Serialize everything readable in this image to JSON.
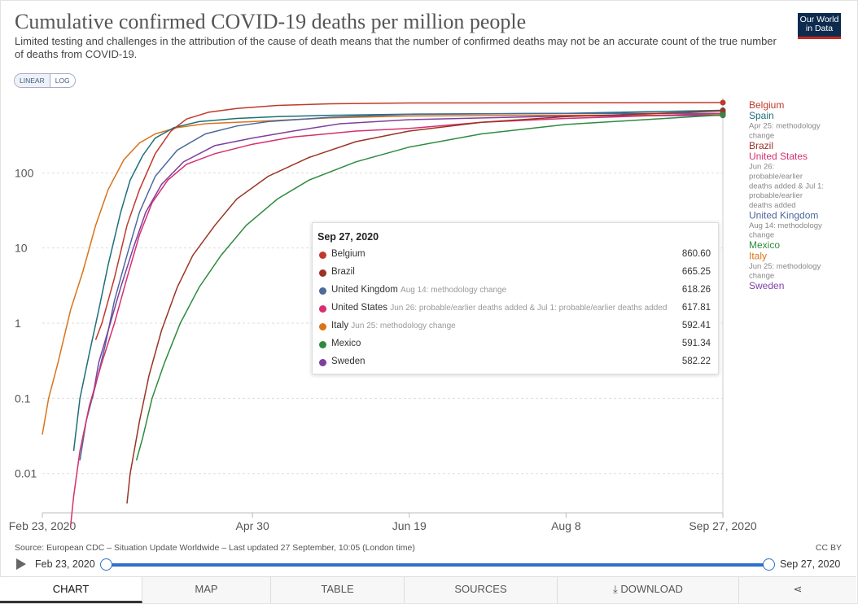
{
  "header": {
    "title": "Cumulative confirmed COVID-19 deaths per million people",
    "subtitle": "Limited testing and challenges in the attribution of the cause of death means that the number of confirmed deaths may not be an accurate count of the true number of deaths from COVID-19.",
    "logo_line1": "Our World",
    "logo_line2": "in Data"
  },
  "controls": {
    "linear_label": "LINEAR",
    "log_label": "LOG"
  },
  "tooltip": {
    "date": "Sep 27, 2020",
    "rows": [
      {
        "name": "Belgium",
        "note": "",
        "value": "860.60",
        "color": "#c0392b"
      },
      {
        "name": "Brazil",
        "note": "",
        "value": "665.25",
        "color": "#9a3324"
      },
      {
        "name": "United Kingdom",
        "note": "Aug 14: methodology change",
        "value": "618.26",
        "color": "#4c6a9c"
      },
      {
        "name": "United States",
        "note": "Jun 26: probable/earlier deaths added & Jul 1: probable/earlier deaths added",
        "value": "617.81",
        "color": "#d62f6f"
      },
      {
        "name": "Italy",
        "note": "Jun 25: methodology change",
        "value": "592.41",
        "color": "#d9741b"
      },
      {
        "name": "Mexico",
        "note": "",
        "value": "591.34",
        "color": "#2e8b3e"
      },
      {
        "name": "Sweden",
        "note": "",
        "value": "582.22",
        "color": "#7e3fa0"
      }
    ]
  },
  "legend": [
    {
      "name": "Belgium",
      "color": "#c0392b",
      "note": ""
    },
    {
      "name": "Spain",
      "color": "#1e6f7b",
      "note": "Apr 25: methodology change"
    },
    {
      "name": "Brazil",
      "color": "#9a3324",
      "note": ""
    },
    {
      "name": "United States",
      "color": "#d62f6f",
      "note": "Jun 26: probable/earlier deaths added & Jul 1: probable/earlier deaths added"
    },
    {
      "name": "United Kingdom",
      "color": "#4c6a9c",
      "note": "Aug 14: methodology change"
    },
    {
      "name": "Mexico",
      "color": "#2e8b3e",
      "note": ""
    },
    {
      "name": "Italy",
      "color": "#d9741b",
      "note": "Jun 25: methodology change"
    },
    {
      "name": "Sweden",
      "color": "#7e3fa0",
      "note": ""
    }
  ],
  "chart_data": {
    "type": "line",
    "title": "Cumulative confirmed COVID-19 deaths per million people",
    "yscale": "log",
    "ylim": [
      0.003,
      1000
    ],
    "xlim": [
      0,
      217
    ],
    "x_ticks": [
      {
        "day": 0,
        "label": "Feb 23, 2020"
      },
      {
        "day": 67,
        "label": "Apr 30"
      },
      {
        "day": 117,
        "label": "Jun 19"
      },
      {
        "day": 167,
        "label": "Aug 8"
      },
      {
        "day": 217,
        "label": "Sep 27, 2020"
      }
    ],
    "y_ticks": [
      {
        "value": 0.01,
        "label": "0.01"
      },
      {
        "value": 0.1,
        "label": "0.1"
      },
      {
        "value": 1,
        "label": "1"
      },
      {
        "value": 10,
        "label": "10"
      },
      {
        "value": 100,
        "label": "100"
      }
    ],
    "series": [
      {
        "name": "Italy",
        "color": "#d9741b",
        "points": [
          [
            0,
            0.033
          ],
          [
            2,
            0.1
          ],
          [
            5,
            0.3
          ],
          [
            9,
            1.5
          ],
          [
            13,
            5
          ],
          [
            17,
            20
          ],
          [
            21,
            60
          ],
          [
            26,
            150
          ],
          [
            31,
            250
          ],
          [
            36,
            330
          ],
          [
            43,
            400
          ],
          [
            52,
            450
          ],
          [
            67,
            480
          ],
          [
            92,
            540
          ],
          [
            117,
            570
          ],
          [
            167,
            585
          ],
          [
            217,
            592.41
          ]
        ]
      },
      {
        "name": "Spain",
        "color": "#1e6f7b",
        "points": [
          [
            10,
            0.02
          ],
          [
            12,
            0.1
          ],
          [
            15,
            0.4
          ],
          [
            18,
            1.5
          ],
          [
            21,
            6
          ],
          [
            25,
            30
          ],
          [
            28,
            80
          ],
          [
            32,
            170
          ],
          [
            36,
            290
          ],
          [
            42,
            400
          ],
          [
            50,
            480
          ],
          [
            62,
            530
          ],
          [
            75,
            560
          ],
          [
            90,
            580
          ],
          [
            117,
            605
          ],
          [
            167,
            620
          ],
          [
            217,
            680
          ]
        ]
      },
      {
        "name": "Belgium",
        "color": "#c0392b",
        "points": [
          [
            17,
            0.6
          ],
          [
            19,
            1
          ],
          [
            23,
            4
          ],
          [
            27,
            20
          ],
          [
            31,
            60
          ],
          [
            36,
            180
          ],
          [
            41,
            360
          ],
          [
            46,
            520
          ],
          [
            53,
            640
          ],
          [
            62,
            720
          ],
          [
            75,
            790
          ],
          [
            92,
            830
          ],
          [
            117,
            850
          ],
          [
            167,
            855
          ],
          [
            217,
            860.6
          ]
        ]
      },
      {
        "name": "United Kingdom",
        "color": "#4c6a9c",
        "points": [
          [
            12,
            0.015
          ],
          [
            14,
            0.05
          ],
          [
            17,
            0.15
          ],
          [
            20,
            0.5
          ],
          [
            23,
            2
          ],
          [
            27,
            8
          ],
          [
            31,
            30
          ],
          [
            36,
            90
          ],
          [
            43,
            200
          ],
          [
            52,
            330
          ],
          [
            62,
            420
          ],
          [
            72,
            480
          ],
          [
            92,
            550
          ],
          [
            117,
            600
          ],
          [
            167,
            620
          ],
          [
            217,
            618.26
          ]
        ]
      },
      {
        "name": "Sweden",
        "color": "#7e3fa0",
        "points": [
          [
            16,
            0.1
          ],
          [
            18,
            0.3
          ],
          [
            21,
            0.8
          ],
          [
            25,
            3
          ],
          [
            29,
            10
          ],
          [
            33,
            30
          ],
          [
            38,
            70
          ],
          [
            45,
            140
          ],
          [
            55,
            230
          ],
          [
            67,
            290
          ],
          [
            80,
            360
          ],
          [
            95,
            450
          ],
          [
            117,
            510
          ],
          [
            167,
            570
          ],
          [
            217,
            582.22
          ]
        ]
      },
      {
        "name": "United States",
        "color": "#d62f6f",
        "points": [
          [
            9,
            0.002
          ],
          [
            10,
            0.005
          ],
          [
            12,
            0.02
          ],
          [
            15,
            0.08
          ],
          [
            19,
            0.3
          ],
          [
            23,
            1
          ],
          [
            27,
            4
          ],
          [
            31,
            15
          ],
          [
            35,
            40
          ],
          [
            40,
            80
          ],
          [
            46,
            130
          ],
          [
            55,
            180
          ],
          [
            67,
            240
          ],
          [
            80,
            300
          ],
          [
            100,
            360
          ],
          [
            117,
            390
          ],
          [
            140,
            470
          ],
          [
            167,
            530
          ],
          [
            217,
            617.81
          ]
        ]
      },
      {
        "name": "Brazil",
        "color": "#9a3324",
        "points": [
          [
            27,
            0.004
          ],
          [
            28,
            0.01
          ],
          [
            31,
            0.05
          ],
          [
            34,
            0.2
          ],
          [
            38,
            0.8
          ],
          [
            43,
            3
          ],
          [
            48,
            8
          ],
          [
            55,
            20
          ],
          [
            62,
            45
          ],
          [
            72,
            90
          ],
          [
            85,
            160
          ],
          [
            100,
            260
          ],
          [
            117,
            360
          ],
          [
            140,
            470
          ],
          [
            167,
            560
          ],
          [
            217,
            665.25
          ]
        ]
      },
      {
        "name": "Mexico",
        "color": "#2e8b3e",
        "points": [
          [
            30,
            0.015
          ],
          [
            32,
            0.03
          ],
          [
            35,
            0.1
          ],
          [
            39,
            0.3
          ],
          [
            44,
            1
          ],
          [
            50,
            3
          ],
          [
            57,
            8
          ],
          [
            65,
            20
          ],
          [
            75,
            45
          ],
          [
            85,
            80
          ],
          [
            100,
            140
          ],
          [
            117,
            220
          ],
          [
            140,
            330
          ],
          [
            167,
            440
          ],
          [
            217,
            591.34
          ]
        ]
      }
    ]
  },
  "footer": {
    "source": "Source: European CDC – Situation Update Worldwide – Last updated 27 September, 10:05 (London time)",
    "license": "CC BY"
  },
  "timeline": {
    "start": "Feb 23, 2020",
    "end": "Sep 27, 2020"
  },
  "tabs": {
    "chart": "CHART",
    "map": "MAP",
    "table": "TABLE",
    "sources": "SOURCES",
    "download": "DOWNLOAD"
  }
}
